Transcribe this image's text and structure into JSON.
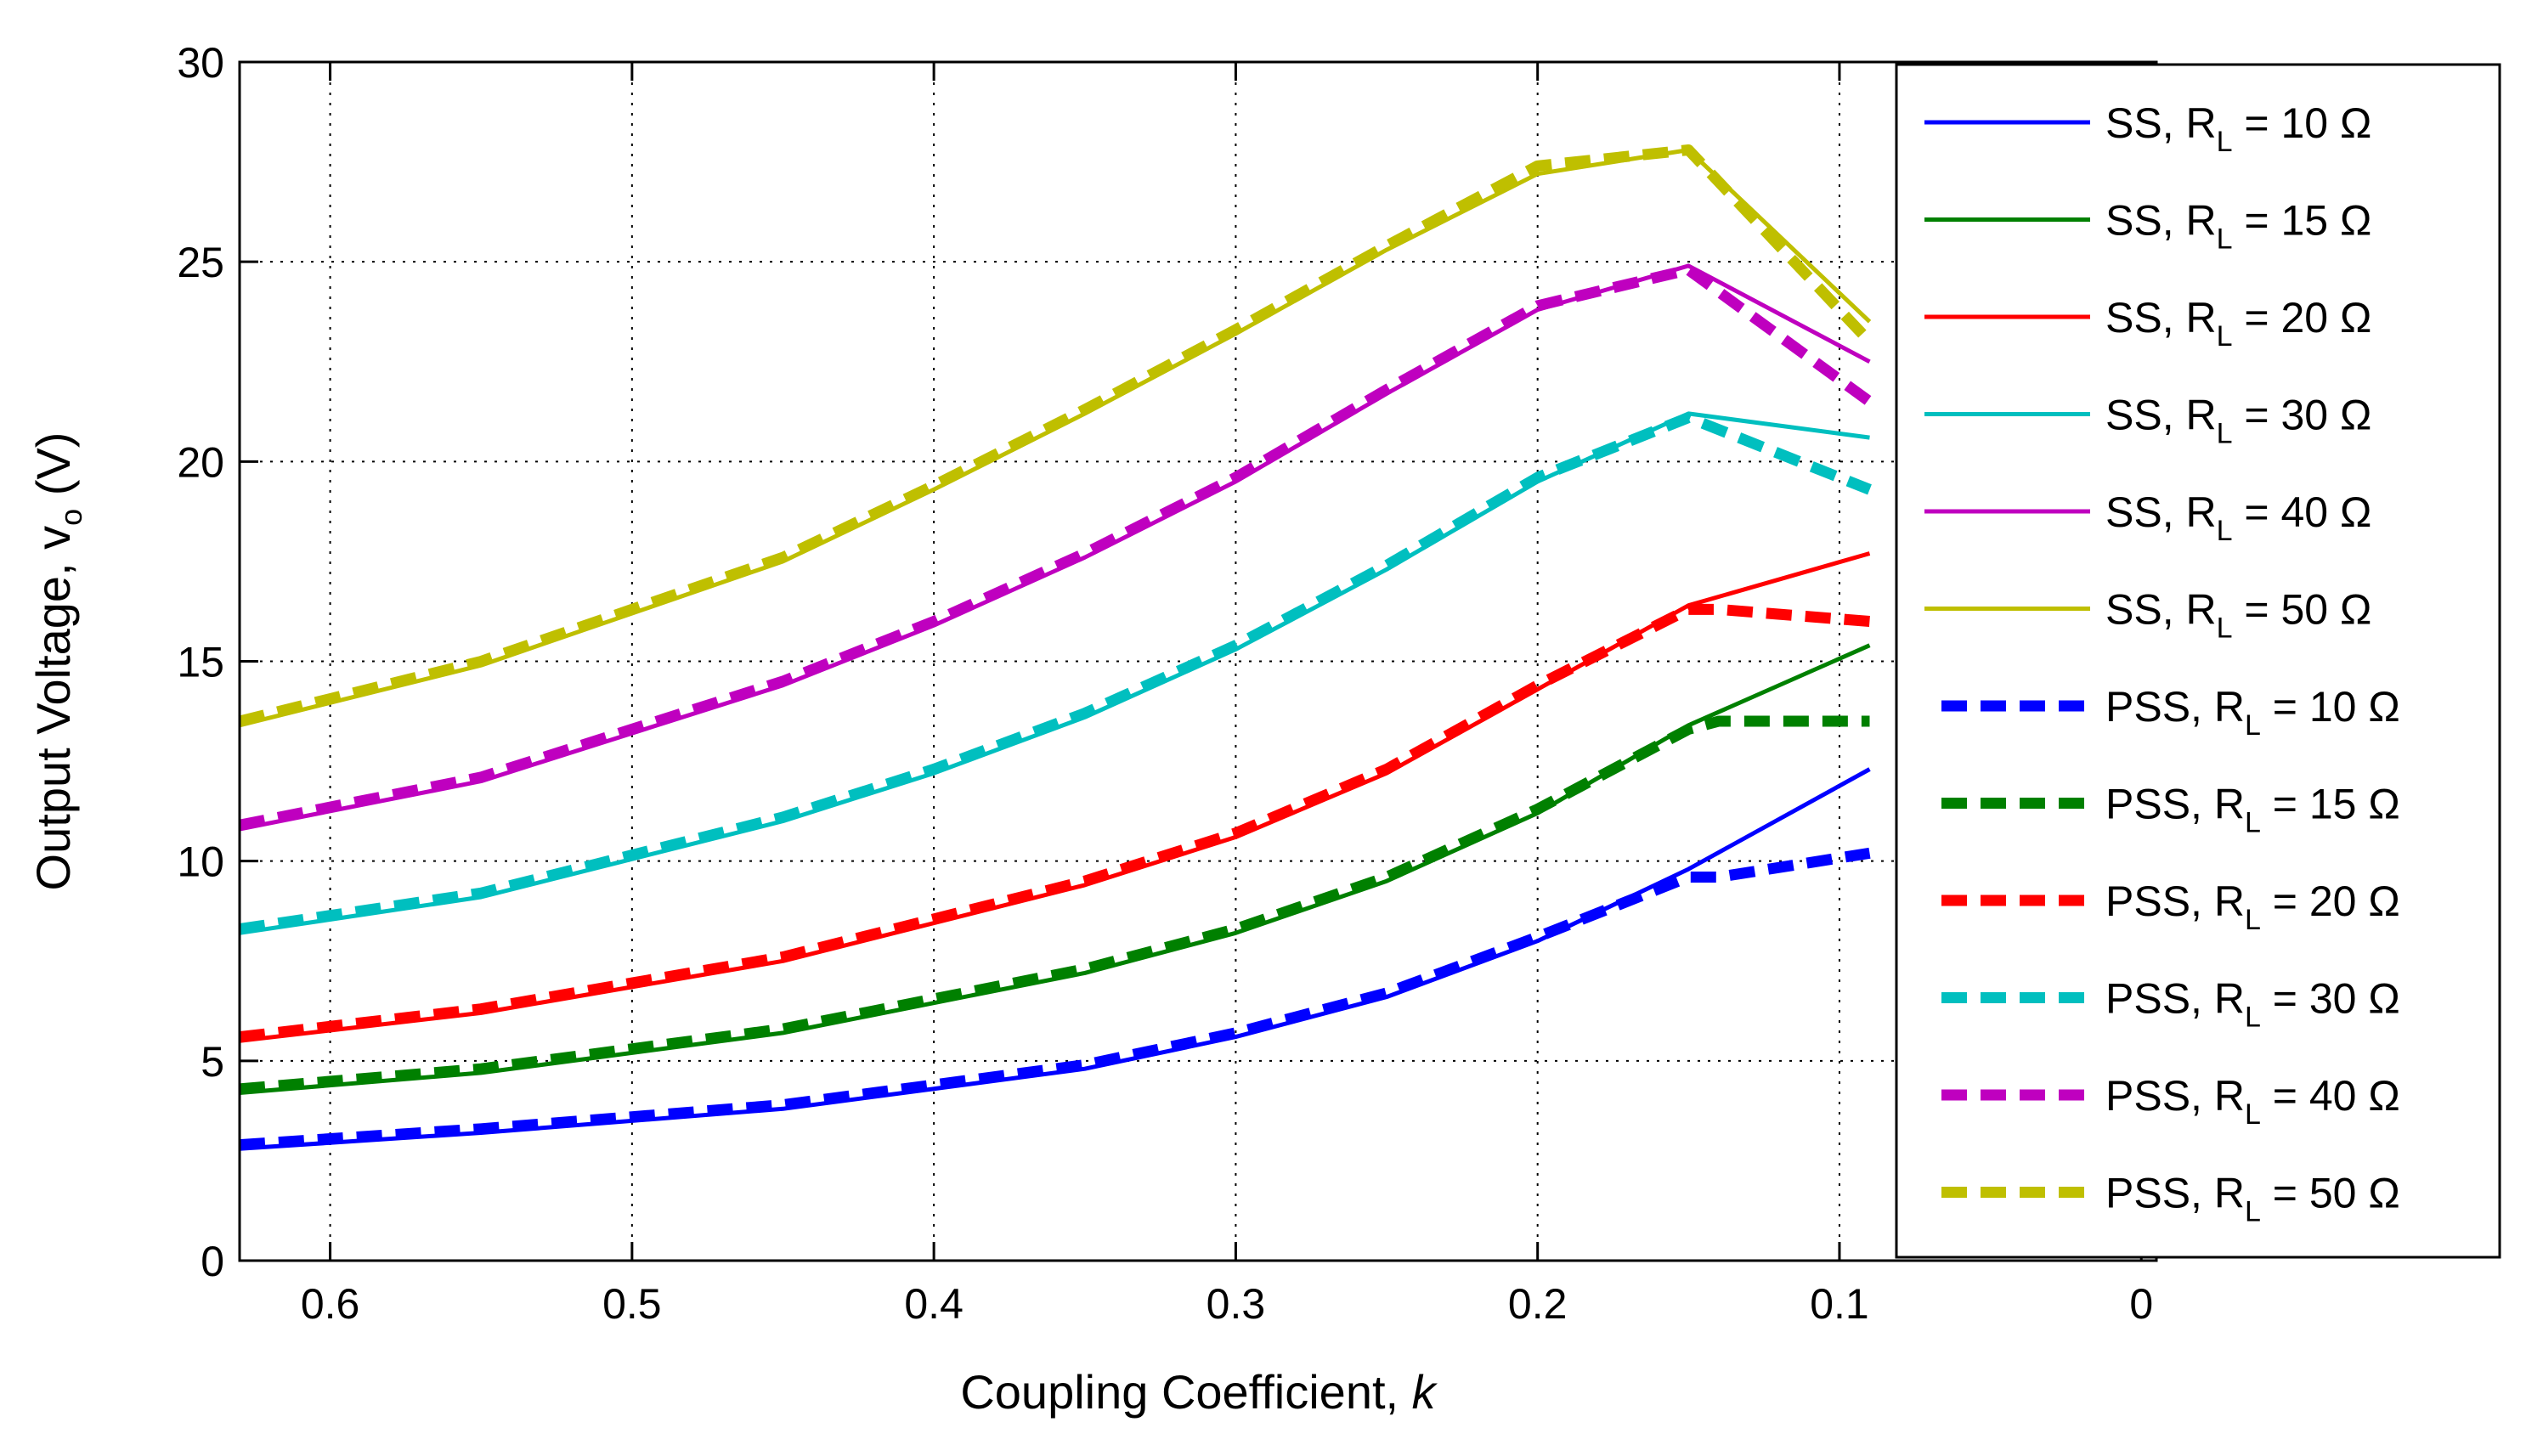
{
  "chart_data": {
    "type": "line",
    "title": "",
    "xlabel": "Coupling Coefficient, ",
    "xlabel_italic": "k",
    "ylabel": "Output Voltage, v",
    "ylabel_sub": "o",
    "ylabel_unit": " (V)",
    "x_reversed": true,
    "xlim": [
      0.63,
      -0.005
    ],
    "ylim": [
      0,
      30
    ],
    "xticks": [
      0.6,
      0.5,
      0.4,
      0.3,
      0.2,
      0.1,
      0
    ],
    "xtick_labels": [
      "0.6",
      "0.5",
      "0.4",
      "0.3",
      "0.2",
      "0.1",
      "0"
    ],
    "yticks": [
      0,
      5,
      10,
      15,
      20,
      25,
      30
    ],
    "ytick_labels": [
      "0",
      "5",
      "10",
      "15",
      "20",
      "25",
      "30"
    ],
    "grid": true,
    "legend_position": "top-right",
    "series": [
      {
        "name": "SS, RL = 10 Ω",
        "prefix": "SS, R",
        "sub": "L",
        "suffix": " = 10 Ω",
        "style": "solid",
        "color": "#0000ff",
        "x": [
          0.63,
          0.55,
          0.45,
          0.35,
          0.3,
          0.25,
          0.2,
          0.15,
          0.09
        ],
        "y": [
          2.8,
          3.2,
          3.8,
          4.8,
          5.6,
          6.6,
          8.0,
          9.8,
          12.3
        ]
      },
      {
        "name": "SS, RL = 15 Ω",
        "prefix": "SS, R",
        "sub": "L",
        "suffix": " = 15 Ω",
        "style": "solid",
        "color": "#008000",
        "x": [
          0.63,
          0.55,
          0.45,
          0.35,
          0.3,
          0.25,
          0.2,
          0.15,
          0.09
        ],
        "y": [
          4.2,
          4.7,
          5.7,
          7.2,
          8.2,
          9.5,
          11.2,
          13.4,
          15.4
        ]
      },
      {
        "name": "SS, RL = 20 Ω",
        "prefix": "SS, R",
        "sub": "L",
        "suffix": " = 20 Ω",
        "style": "solid",
        "color": "#ff0000",
        "x": [
          0.63,
          0.55,
          0.45,
          0.35,
          0.3,
          0.25,
          0.2,
          0.15,
          0.09
        ],
        "y": [
          5.5,
          6.2,
          7.5,
          9.4,
          10.6,
          12.2,
          14.3,
          16.4,
          17.7
        ]
      },
      {
        "name": "SS, RL = 30 Ω",
        "prefix": "SS, R",
        "sub": "L",
        "suffix": " = 30 Ω",
        "style": "solid",
        "color": "#00bfbf",
        "x": [
          0.63,
          0.55,
          0.45,
          0.4,
          0.35,
          0.3,
          0.25,
          0.2,
          0.15,
          0.09
        ],
        "y": [
          8.2,
          9.1,
          11.0,
          12.2,
          13.6,
          15.3,
          17.3,
          19.5,
          21.2,
          20.6
        ]
      },
      {
        "name": "SS, RL = 40 Ω",
        "prefix": "SS, R",
        "sub": "L",
        "suffix": " = 40 Ω",
        "style": "solid",
        "color": "#bf00bf",
        "x": [
          0.63,
          0.55,
          0.45,
          0.4,
          0.35,
          0.3,
          0.25,
          0.2,
          0.15,
          0.09
        ],
        "y": [
          10.8,
          12.0,
          14.4,
          15.9,
          17.6,
          19.5,
          21.7,
          23.8,
          24.9,
          22.5
        ]
      },
      {
        "name": "SS, RL = 50 Ω",
        "prefix": "SS, R",
        "sub": "L",
        "suffix": " = 50 Ω",
        "style": "solid",
        "color": "#bfbf00",
        "x": [
          0.63,
          0.55,
          0.45,
          0.4,
          0.35,
          0.3,
          0.25,
          0.2,
          0.15,
          0.09
        ],
        "y": [
          13.4,
          14.9,
          17.5,
          19.3,
          21.2,
          23.2,
          25.3,
          27.2,
          27.8,
          23.5
        ]
      },
      {
        "name": "PSS, RL = 10 Ω",
        "prefix": "PSS, R",
        "sub": "L",
        "suffix": " = 10 Ω",
        "style": "dashed",
        "color": "#0000ff",
        "x": [
          0.63,
          0.55,
          0.45,
          0.35,
          0.3,
          0.25,
          0.2,
          0.15,
          0.14,
          0.09
        ],
        "y": [
          2.9,
          3.3,
          3.9,
          4.9,
          5.7,
          6.7,
          8.1,
          9.6,
          9.6,
          10.2
        ]
      },
      {
        "name": "PSS, RL = 15 Ω",
        "prefix": "PSS, R",
        "sub": "L",
        "suffix": " = 15 Ω",
        "style": "dashed",
        "color": "#008000",
        "x": [
          0.63,
          0.55,
          0.45,
          0.35,
          0.3,
          0.25,
          0.2,
          0.15,
          0.14,
          0.09
        ],
        "y": [
          4.3,
          4.8,
          5.8,
          7.3,
          8.3,
          9.6,
          11.3,
          13.3,
          13.5,
          13.5
        ]
      },
      {
        "name": "PSS, RL = 20 Ω",
        "prefix": "PSS, R",
        "sub": "L",
        "suffix": " = 20 Ω",
        "style": "dashed",
        "color": "#ff0000",
        "x": [
          0.63,
          0.55,
          0.45,
          0.35,
          0.3,
          0.25,
          0.2,
          0.15,
          0.14,
          0.09
        ],
        "y": [
          5.6,
          6.3,
          7.6,
          9.5,
          10.7,
          12.3,
          14.4,
          16.3,
          16.3,
          16.0
        ]
      },
      {
        "name": "PSS, RL = 30 Ω",
        "prefix": "PSS, R",
        "sub": "L",
        "suffix": " = 30 Ω",
        "style": "dashed",
        "color": "#00bfbf",
        "x": [
          0.63,
          0.55,
          0.45,
          0.4,
          0.35,
          0.3,
          0.25,
          0.2,
          0.15,
          0.09
        ],
        "y": [
          8.3,
          9.2,
          11.1,
          12.3,
          13.7,
          15.4,
          17.4,
          19.6,
          21.1,
          19.3
        ]
      },
      {
        "name": "PSS, RL = 40 Ω",
        "prefix": "PSS, R",
        "sub": "L",
        "suffix": " = 40 Ω",
        "style": "dashed",
        "color": "#bf00bf",
        "x": [
          0.63,
          0.55,
          0.45,
          0.4,
          0.35,
          0.3,
          0.25,
          0.2,
          0.15,
          0.09
        ],
        "y": [
          10.9,
          12.1,
          14.5,
          16.0,
          17.7,
          19.6,
          21.8,
          23.9,
          24.8,
          21.5
        ]
      },
      {
        "name": "PSS, RL = 50 Ω",
        "prefix": "PSS, R",
        "sub": "L",
        "suffix": " = 50 Ω",
        "style": "dashed",
        "color": "#bfbf00",
        "x": [
          0.63,
          0.55,
          0.45,
          0.4,
          0.35,
          0.3,
          0.25,
          0.2,
          0.15,
          0.09
        ],
        "y": [
          13.5,
          15.0,
          17.6,
          19.4,
          21.3,
          23.3,
          25.4,
          27.4,
          27.8,
          23.0
        ]
      }
    ]
  }
}
